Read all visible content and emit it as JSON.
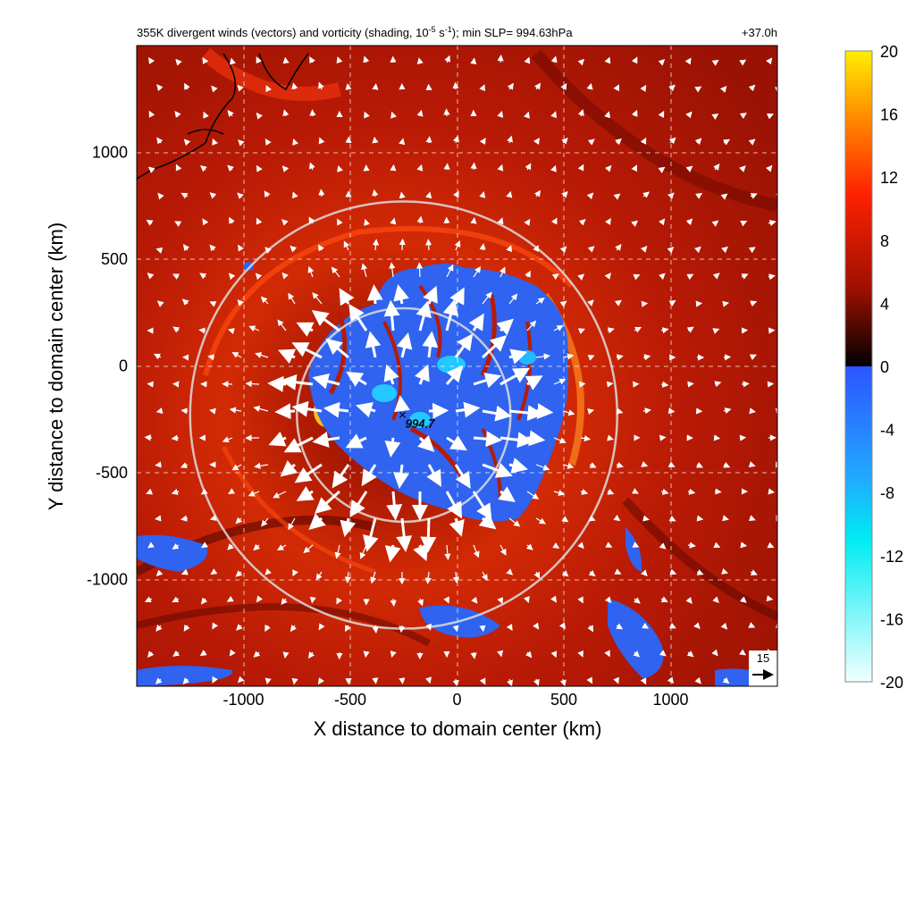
{
  "chart_data": {
    "type": "heatmap",
    "title_main": "355K divergent winds (vectors) and vorticity (shading, 10",
    "title_sup1": "-5",
    "title_mid": " s",
    "title_sup2": "-1",
    "title_tail": "); min SLP= 994.63hPa",
    "time_label": "+37.0h",
    "xlabel": "X distance to domain center (km)",
    "ylabel": "Y distance to domain center (km)",
    "xlim": [
      -1500,
      1500
    ],
    "ylim": [
      -1500,
      1500
    ],
    "x_ticks": [
      -1000,
      -500,
      0,
      500,
      1000
    ],
    "y_ticks": [
      -1000,
      -500,
      0,
      500,
      1000
    ],
    "grid": true,
    "colorbar": {
      "ticks": [
        "20",
        "16",
        "12",
        "8",
        "4",
        "0",
        "-4",
        "-8",
        "-12",
        "-16",
        "-20"
      ],
      "range": [
        -20,
        20
      ],
      "colors": {
        "pos_top": "#ffee00",
        "pos_mid": "#ff2a00",
        "pos_low": "#b01000",
        "zero": "#000000",
        "neg_top": "#2b55ff",
        "neg_mid": "#00e0f0",
        "neg_bottom": "#f0ffff"
      }
    },
    "storm_center": {
      "x": -250,
      "y": -230,
      "label": "994.7"
    },
    "circles_radius_km": [
      500,
      1000
    ],
    "reference_vector": {
      "label": "15",
      "speed": 15
    },
    "negative_region_color": "#2f63f0",
    "background_color": "#b81a05"
  }
}
